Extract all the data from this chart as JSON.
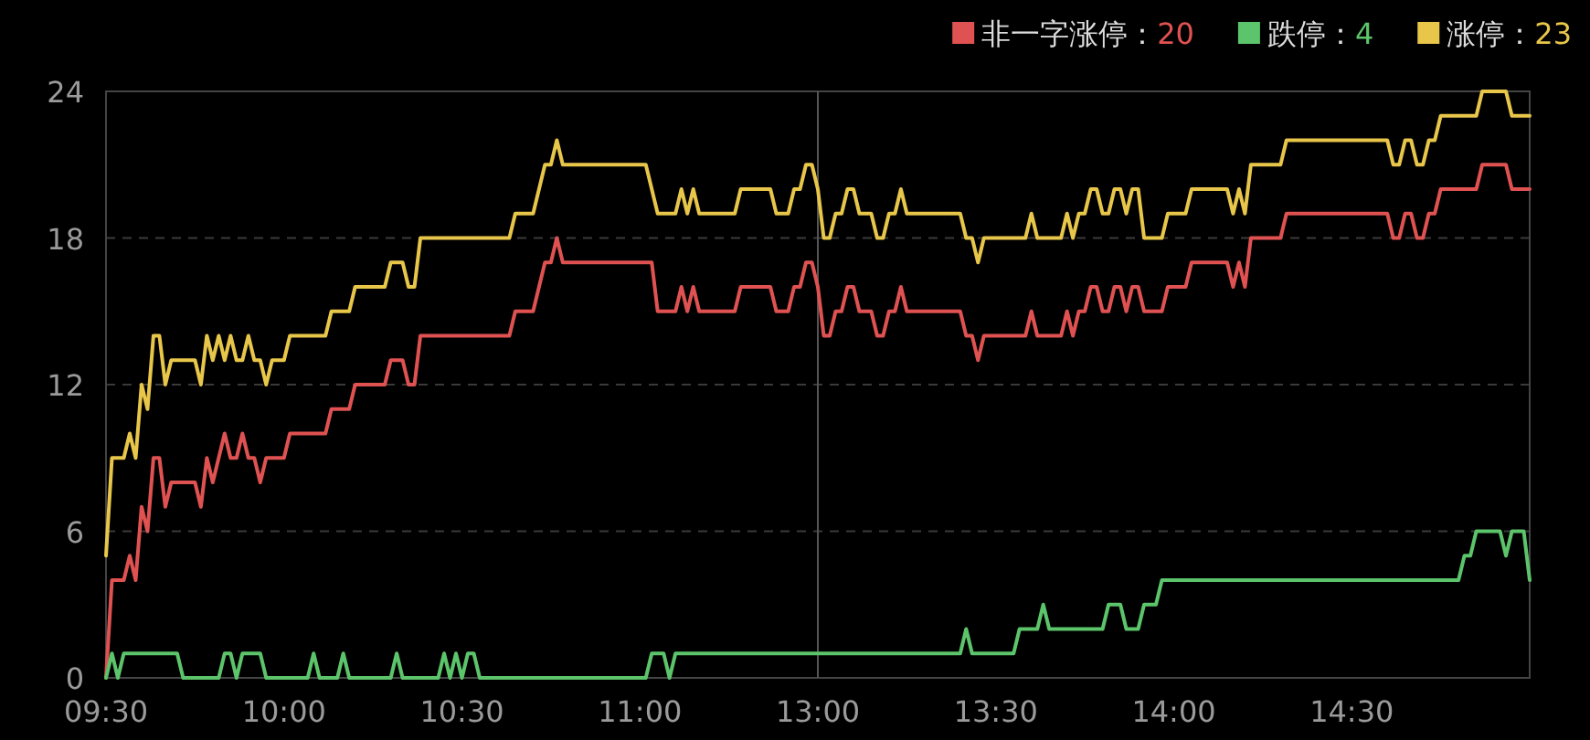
{
  "chart_data": {
    "type": "line",
    "ylim": [
      0,
      24
    ],
    "categories": [
      "09:30",
      null,
      null,
      null,
      null,
      null,
      null,
      null,
      null,
      null,
      null,
      null,
      null,
      null,
      null,
      null,
      null,
      null,
      null,
      null,
      null,
      null,
      null,
      null,
      null,
      null,
      null,
      null,
      null,
      null,
      "10:00",
      null,
      null,
      null,
      null,
      null,
      null,
      null,
      null,
      null,
      null,
      null,
      null,
      null,
      null,
      null,
      null,
      null,
      null,
      null,
      null,
      null,
      null,
      null,
      null,
      null,
      null,
      null,
      null,
      null,
      "10:30",
      null,
      null,
      null,
      null,
      null,
      null,
      null,
      null,
      null,
      null,
      null,
      null,
      null,
      null,
      null,
      null,
      null,
      null,
      null,
      null,
      null,
      null,
      null,
      null,
      null,
      null,
      null,
      null,
      null,
      "11:00",
      null,
      null,
      null,
      null,
      null,
      null,
      null,
      null,
      null,
      null,
      null,
      null,
      null,
      null,
      null,
      null,
      null,
      null,
      null,
      null,
      null,
      null,
      null,
      null,
      null,
      null,
      null,
      null,
      null,
      "13:00",
      null,
      null,
      null,
      null,
      null,
      null,
      null,
      null,
      null,
      null,
      null,
      null,
      null,
      null,
      null,
      null,
      null,
      null,
      null,
      null,
      null,
      null,
      null,
      null,
      null,
      null,
      null,
      null,
      null,
      "13:30",
      null,
      null,
      null,
      null,
      null,
      null,
      null,
      null,
      null,
      null,
      null,
      null,
      null,
      null,
      null,
      null,
      null,
      null,
      null,
      null,
      null,
      null,
      null,
      null,
      null,
      null,
      null,
      null,
      null,
      "14:00",
      null,
      null,
      null,
      null,
      null,
      null,
      null,
      null,
      null,
      null,
      null,
      null,
      null,
      null,
      null,
      null,
      null,
      null,
      null,
      null,
      null,
      null,
      null,
      null,
      null,
      null,
      null,
      null,
      null,
      "14:30",
      null,
      null,
      null,
      null,
      null,
      null,
      null,
      null,
      null,
      null,
      null,
      null,
      null,
      null,
      null,
      null,
      null,
      null,
      null,
      null,
      null,
      null,
      null,
      null,
      null,
      null,
      null,
      null,
      null,
      null
    ],
    "yticks": [
      0,
      6,
      12,
      18,
      24
    ],
    "grid": "y",
    "legend": "top right",
    "ref_lines": [
      {
        "axis": "x",
        "value": "13:00",
        "color": "#555555"
      }
    ],
    "series": [
      {
        "name": "非一字涨停：20",
        "color": "#e05252",
        "values": [
          0,
          4,
          4,
          4,
          5,
          4,
          7,
          6,
          9,
          9,
          7,
          8,
          8,
          8,
          8,
          8,
          7,
          9,
          8,
          9,
          10,
          9,
          9,
          10,
          9,
          9,
          8,
          9,
          9,
          9,
          9,
          10,
          10,
          10,
          10,
          10,
          10,
          10,
          11,
          11,
          11,
          11,
          12,
          12,
          12,
          12,
          12,
          12,
          13,
          13,
          13,
          12,
          12,
          14,
          14,
          14,
          14,
          14,
          14,
          14,
          14,
          14,
          14,
          14,
          14,
          14,
          14,
          14,
          14,
          15,
          15,
          15,
          15,
          16,
          17,
          17,
          18,
          17,
          17,
          17,
          17,
          17,
          17,
          17,
          17,
          17,
          17,
          17,
          17,
          17,
          17,
          17,
          17,
          15,
          15,
          15,
          15,
          16,
          15,
          16,
          15,
          15,
          15,
          15,
          15,
          15,
          15,
          16,
          16,
          16,
          16,
          16,
          16,
          15,
          15,
          15,
          16,
          16,
          17,
          17,
          16,
          14,
          14,
          15,
          15,
          16,
          16,
          15,
          15,
          15,
          14,
          14,
          15,
          15,
          16,
          15,
          15,
          15,
          15,
          15,
          15,
          15,
          15,
          15,
          15,
          14,
          14,
          13,
          14,
          14,
          14,
          14,
          14,
          14,
          14,
          14,
          15,
          14,
          14,
          14,
          14,
          14,
          15,
          14,
          15,
          15,
          16,
          16,
          15,
          15,
          16,
          16,
          15,
          16,
          16,
          15,
          15,
          15,
          15,
          16,
          16,
          16,
          16,
          17,
          17,
          17,
          17,
          17,
          17,
          17,
          16,
          17,
          16,
          18,
          18,
          18,
          18,
          18,
          18,
          19,
          19,
          19,
          19,
          19,
          19,
          19,
          19,
          19,
          19,
          19,
          19,
          19,
          19,
          19,
          19,
          19,
          19,
          18,
          18,
          19,
          19,
          18,
          18,
          19,
          19,
          20,
          20,
          20,
          20,
          20,
          20,
          20,
          21,
          21,
          21,
          21,
          21,
          20,
          20,
          20,
          20
        ]
      },
      {
        "name": "跌停：4",
        "color": "#5cc46a",
        "values": [
          0,
          1,
          0,
          1,
          1,
          1,
          1,
          1,
          1,
          1,
          1,
          1,
          1,
          0,
          0,
          0,
          0,
          0,
          0,
          0,
          1,
          1,
          0,
          1,
          1,
          1,
          1,
          0,
          0,
          0,
          0,
          0,
          0,
          0,
          0,
          1,
          0,
          0,
          0,
          0,
          1,
          0,
          0,
          0,
          0,
          0,
          0,
          0,
          0,
          1,
          0,
          0,
          0,
          0,
          0,
          0,
          0,
          1,
          0,
          1,
          0,
          1,
          1,
          0,
          0,
          0,
          0,
          0,
          0,
          0,
          0,
          0,
          0,
          0,
          0,
          0,
          0,
          0,
          0,
          0,
          0,
          0,
          0,
          0,
          0,
          0,
          0,
          0,
          0,
          0,
          0,
          0,
          1,
          1,
          1,
          0,
          1,
          1,
          1,
          1,
          1,
          1,
          1,
          1,
          1,
          1,
          1,
          1,
          1,
          1,
          1,
          1,
          1,
          1,
          1,
          1,
          1,
          1,
          1,
          1,
          1,
          1,
          1,
          1,
          1,
          1,
          1,
          1,
          1,
          1,
          1,
          1,
          1,
          1,
          1,
          1,
          1,
          1,
          1,
          1,
          1,
          1,
          1,
          1,
          1,
          2,
          1,
          1,
          1,
          1,
          1,
          1,
          1,
          1,
          2,
          2,
          2,
          2,
          3,
          2,
          2,
          2,
          2,
          2,
          2,
          2,
          2,
          2,
          2,
          3,
          3,
          3,
          2,
          2,
          2,
          3,
          3,
          3,
          4,
          4,
          4,
          4,
          4,
          4,
          4,
          4,
          4,
          4,
          4,
          4,
          4,
          4,
          4,
          4,
          4,
          4,
          4,
          4,
          4,
          4,
          4,
          4,
          4,
          4,
          4,
          4,
          4,
          4,
          4,
          4,
          4,
          4,
          4,
          4,
          4,
          4,
          4,
          4,
          4,
          4,
          4,
          4,
          4,
          4,
          4,
          4,
          4,
          4,
          4,
          5,
          5,
          6,
          6,
          6,
          6,
          6,
          5,
          6,
          6,
          6,
          4
        ]
      },
      {
        "name": "涨停：23",
        "color": "#e8c64a",
        "values": [
          5,
          9,
          9,
          9,
          10,
          9,
          12,
          11,
          14,
          14,
          12,
          13,
          13,
          13,
          13,
          13,
          12,
          14,
          13,
          14,
          13,
          14,
          13,
          13,
          14,
          13,
          13,
          12,
          13,
          13,
          13,
          14,
          14,
          14,
          14,
          14,
          14,
          14,
          15,
          15,
          15,
          15,
          16,
          16,
          16,
          16,
          16,
          16,
          17,
          17,
          17,
          16,
          16,
          18,
          18,
          18,
          18,
          18,
          18,
          18,
          18,
          18,
          18,
          18,
          18,
          18,
          18,
          18,
          18,
          19,
          19,
          19,
          19,
          20,
          21,
          21,
          22,
          21,
          21,
          21,
          21,
          21,
          21,
          21,
          21,
          21,
          21,
          21,
          21,
          21,
          21,
          21,
          20,
          19,
          19,
          19,
          19,
          20,
          19,
          20,
          19,
          19,
          19,
          19,
          19,
          19,
          19,
          20,
          20,
          20,
          20,
          20,
          20,
          19,
          19,
          19,
          20,
          20,
          21,
          21,
          20,
          18,
          18,
          19,
          19,
          20,
          20,
          19,
          19,
          19,
          18,
          18,
          19,
          19,
          20,
          19,
          19,
          19,
          19,
          19,
          19,
          19,
          19,
          19,
          19,
          18,
          18,
          17,
          18,
          18,
          18,
          18,
          18,
          18,
          18,
          18,
          19,
          18,
          18,
          18,
          18,
          18,
          19,
          18,
          19,
          19,
          20,
          20,
          19,
          19,
          20,
          20,
          19,
          20,
          20,
          18,
          18,
          18,
          18,
          19,
          19,
          19,
          19,
          20,
          20,
          20,
          20,
          20,
          20,
          20,
          19,
          20,
          19,
          21,
          21,
          21,
          21,
          21,
          21,
          22,
          22,
          22,
          22,
          22,
          22,
          22,
          22,
          22,
          22,
          22,
          22,
          22,
          22,
          22,
          22,
          22,
          22,
          21,
          21,
          22,
          22,
          21,
          21,
          22,
          22,
          23,
          23,
          23,
          23,
          23,
          23,
          23,
          24,
          24,
          24,
          24,
          24,
          23,
          23,
          23,
          23
        ]
      }
    ]
  }
}
